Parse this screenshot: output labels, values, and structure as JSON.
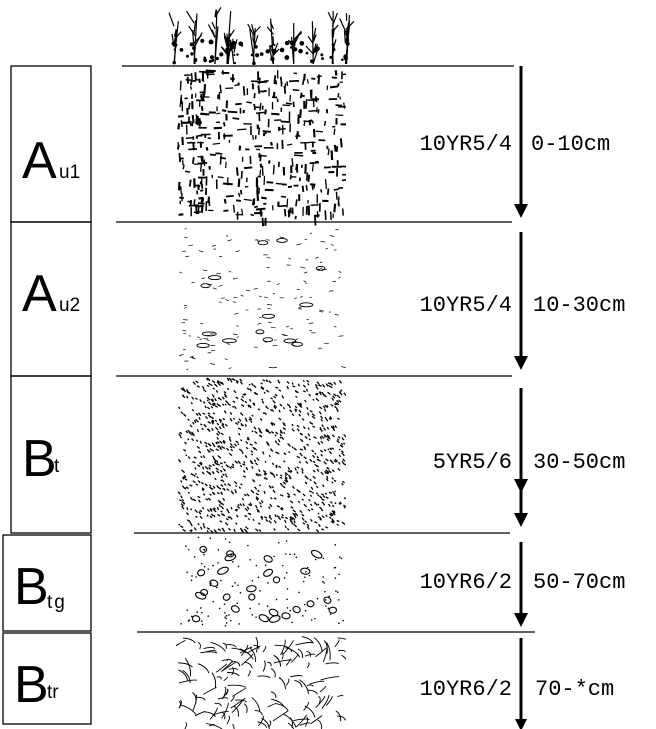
{
  "horizons": [
    {
      "main": "A",
      "sub": "u1",
      "color": "10YR5/4",
      "depth": "0-10cm",
      "texture": "vertical-streaks"
    },
    {
      "main": "A",
      "sub": "u2",
      "color": "10YR5/4",
      "depth": "10-30cm",
      "texture": "sparse-flecks"
    },
    {
      "main": "B",
      "sub": "t",
      "color": "5YR5/6",
      "depth": "30-50cm",
      "texture": "dense-dots"
    },
    {
      "main": "B",
      "sub": "tg",
      "color": "10YR6/2",
      "depth": "50-70cm",
      "texture": "ovals"
    },
    {
      "main": "B",
      "sub": "tr",
      "color": "10YR6/2",
      "depth": "70-*cm",
      "texture": "cracked"
    }
  ],
  "colors": {
    "ink": "#000000",
    "background": "#ffffff"
  }
}
